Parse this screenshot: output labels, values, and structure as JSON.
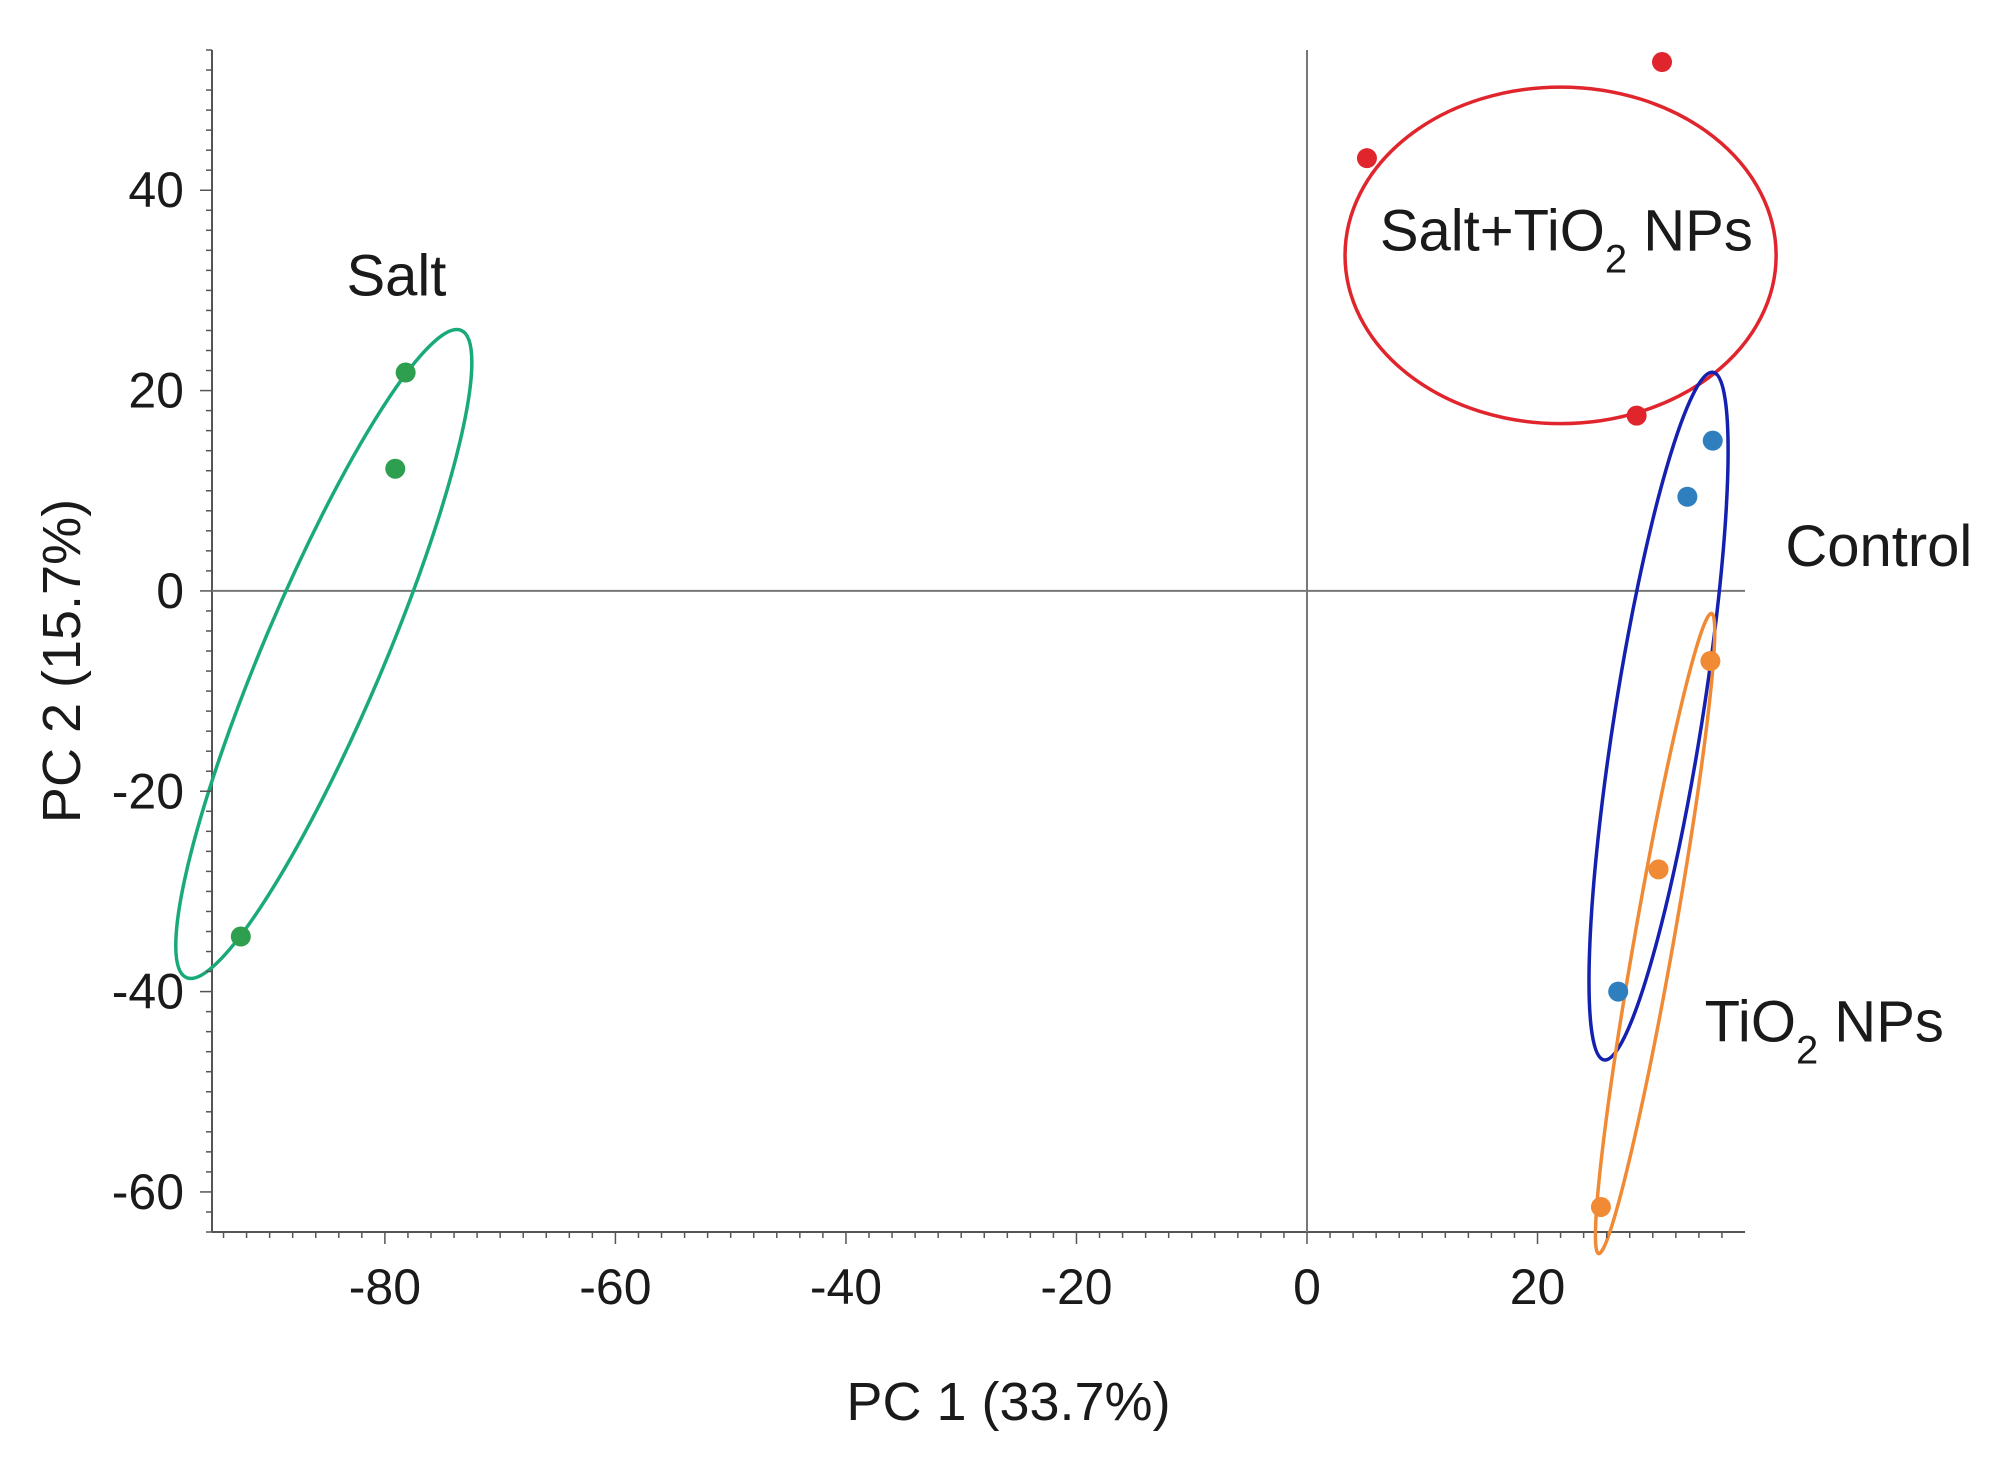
{
  "chart_data": {
    "type": "scatter",
    "title": "",
    "xlabel": "PC 1 (33.7%)",
    "ylabel": "PC 2 (15.7%)",
    "xlim": [
      -95,
      38
    ],
    "ylim": [
      -64,
      54
    ],
    "xticks": [
      -80,
      -60,
      -40,
      -20,
      0,
      20
    ],
    "yticks": [
      40,
      20,
      0,
      -20,
      -40,
      -60
    ],
    "series": [
      {
        "name": "Salt",
        "color": "#2e9e4f",
        "ellipse_color": "#1aaa7a",
        "points": [
          [
            -92.5,
            -34.5
          ],
          [
            -78.2,
            21.8
          ],
          [
            -79.1,
            12.2
          ]
        ]
      },
      {
        "name": "Salt+TiO2 NPs",
        "color": "#e0252d",
        "ellipse_color": "#e0252d",
        "points": [
          [
            5.2,
            43.2
          ],
          [
            30.8,
            52.8
          ],
          [
            28.6,
            17.5
          ]
        ]
      },
      {
        "name": "Control",
        "color": "#2f7fbf",
        "ellipse_color": "#1420b0",
        "points": [
          [
            33.0,
            9.4
          ],
          [
            35.2,
            15.0
          ],
          [
            27.0,
            -40.0
          ]
        ]
      },
      {
        "name": "TiO2 NPs",
        "color": "#f08a34",
        "ellipse_color": "#f08a34",
        "points": [
          [
            35.0,
            -7.0
          ],
          [
            30.5,
            -27.8
          ],
          [
            25.5,
            -61.5
          ]
        ]
      }
    ],
    "group_labels": [
      {
        "text": "Salt",
        "x": -79,
        "y": 29.5,
        "anchor": "middle"
      },
      {
        "text": "Salt+TiO",
        "sub": "2",
        "tail": " NPs",
        "x": 22.5,
        "y": 34,
        "anchor": "middle"
      },
      {
        "text": "Control",
        "x": 41.5,
        "y": 2.5,
        "anchor": "start"
      },
      {
        "text": "TiO",
        "sub": "2",
        "tail": " NPs",
        "x": 34.5,
        "y": -45,
        "anchor": "start"
      }
    ],
    "ellipses": [
      {
        "group": "Salt",
        "cx": -85.3,
        "cy": -6.3,
        "rx": 30.5,
        "ry": 5.2,
        "rotation": 67
      },
      {
        "group": "Salt+TiO2 NPs",
        "cx": 22.0,
        "cy": 33.5,
        "rx": 18.7,
        "ry": 14.6,
        "rotation": 0
      },
      {
        "group": "Control",
        "cx": 30.5,
        "cy": -12.5,
        "rx": 30.2,
        "ry": 3.8,
        "rotation": 81
      },
      {
        "group": "TiO2 NPs",
        "cx": 30.2,
        "cy": -34.2,
        "rx": 28.2,
        "ry": 1.7,
        "rotation": 80
      }
    ]
  }
}
